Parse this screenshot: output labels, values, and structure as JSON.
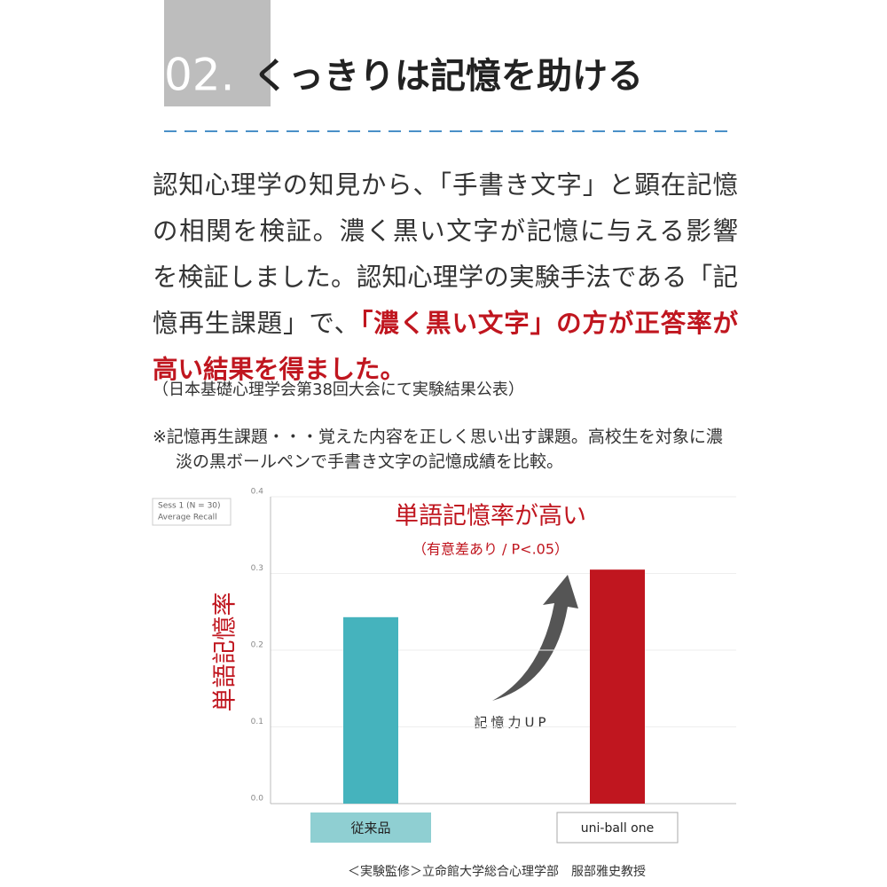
{
  "header": {
    "number": "02.",
    "title": "くっきりは記憶を助ける"
  },
  "body": {
    "lines": [
      [
        {
          "text": "認知心理学の知見から、「手書き文字」と顕在記憶",
          "highlight": false
        }
      ],
      [
        {
          "text": "の相関を検証。濃く黒い文字が記憶に与える影響",
          "highlight": false
        }
      ],
      [
        {
          "text": "を検証しました。認知心理学の実験手法である「記",
          "highlight": false
        }
      ],
      [
        {
          "text": "憶再生課題」で、",
          "highlight": false
        },
        {
          "text": "「濃く黒い文字」の方が正答率が",
          "highlight": true
        }
      ],
      [
        {
          "text": "高い結果を得ました。",
          "highlight": true
        }
      ]
    ],
    "source": "（日本基礎心理学会第38回大会にて実験結果公表）",
    "note": [
      "※記憶再生課題・・・覚えた内容を正しく思い出す課題。高校生を対象に濃",
      "淡の黒ボールペンで手書き文字の記憶成績を比較。"
    ]
  },
  "chart_data": {
    "type": "bar",
    "legend_lines": [
      "Sess 1 (N = 30)",
      "Average Recall"
    ],
    "y_label": "単語記憶率",
    "annotation": "単語記憶率が高い",
    "annotation_note": "（有意差あり / P<.05）",
    "arrow_label": "記憶力UP",
    "categories": [
      "従来品",
      "uni-ball one"
    ],
    "values": [
      0.243,
      0.305
    ],
    "colors": [
      "#45b3bd",
      "#c0161f"
    ],
    "ylim": [
      0,
      0.4
    ],
    "yticks": [
      {
        "value": 0,
        "label": "0.0"
      },
      0.1,
      0.2,
      0.3,
      0.4
    ],
    "grid": true
  },
  "footer": "＜実験監修＞立命館大学総合心理学部　服部雅史教授"
}
